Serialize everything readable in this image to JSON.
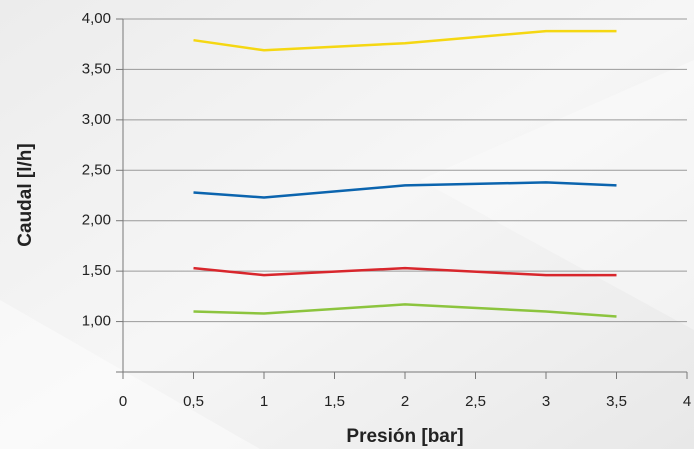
{
  "chart_data": {
    "type": "line",
    "x_label": "Presión [bar]",
    "y_label": "Caudal [l/h]",
    "x": [
      0.5,
      1,
      2,
      3,
      3.5
    ],
    "series": [
      {
        "color": "#f5d712",
        "values": [
          3.79,
          3.69,
          3.76,
          3.88,
          3.88
        ]
      },
      {
        "color": "#0b64ae",
        "values": [
          2.28,
          2.23,
          2.35,
          2.38,
          2.35
        ]
      },
      {
        "color": "#d8262c",
        "values": [
          1.53,
          1.46,
          1.53,
          1.46,
          1.46
        ]
      },
      {
        "color": "#8cc43e",
        "values": [
          1.1,
          1.08,
          1.17,
          1.1,
          1.05
        ]
      }
    ],
    "xlim": [
      0,
      4
    ],
    "xticks": [
      0,
      {
        "value": 0.5,
        "label": "0,5"
      },
      1,
      {
        "value": 1.5,
        "label": "1,5"
      },
      2,
      {
        "value": 2.5,
        "label": "2,5"
      },
      3,
      {
        "value": 3.5,
        "label": "3,5"
      },
      4
    ],
    "ylim": [
      0.5,
      4
    ],
    "yticks": [
      {
        "value": 1,
        "label": "1,00"
      },
      {
        "value": 1.5,
        "label": "1,50"
      },
      {
        "value": 2,
        "label": "2,00"
      },
      {
        "value": 2.5,
        "label": "2,50"
      },
      {
        "value": 3,
        "label": "3,00"
      },
      {
        "value": 3.5,
        "label": "3,50"
      },
      {
        "value": 4,
        "label": "4,00"
      }
    ],
    "grid": true
  }
}
